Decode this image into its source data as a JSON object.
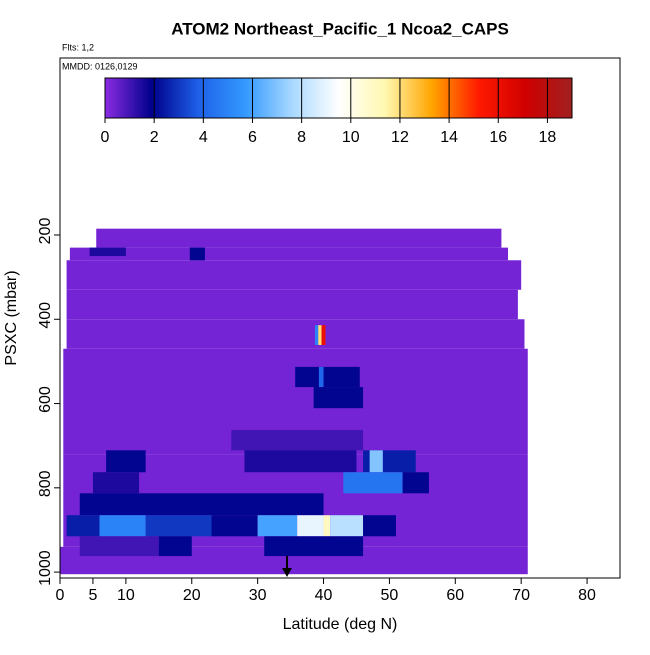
{
  "chart_data": {
    "type": "heatmap",
    "title": "ATOM2 Northeast_Pacific_1 Ncoa2_CAPS",
    "annotations": [
      "Flts: 1,2",
      "MMDD: 0126,0129"
    ],
    "xlabel": "Latitude (deg N)",
    "ylabel": "PSXC (mbar)",
    "xlim": [
      0,
      85
    ],
    "ylim": [
      1014,
      -220
    ],
    "xticks": [
      0,
      5,
      10,
      20,
      30,
      40,
      50,
      60,
      70,
      80
    ],
    "yticks": [
      200,
      400,
      600,
      800,
      1000
    ],
    "colorbar": {
      "lim": [
        0,
        19
      ],
      "ticks": [
        0,
        2,
        4,
        6,
        8,
        10,
        12,
        14,
        16,
        18
      ],
      "colors": [
        "#8a2be2",
        "#00008b",
        "#1e60e8",
        "#3399ff",
        "#a8d8ff",
        "#ffffff",
        "#fff8b0",
        "#ffa500",
        "#ff1a00",
        "#d00000",
        "#a02020"
      ]
    },
    "cells": [
      {
        "lat": [
          5.5,
          67
        ],
        "p": [
          185,
          230
        ],
        "value": 0.3
      },
      {
        "lat": [
          1.5,
          68
        ],
        "p": [
          230,
          260
        ],
        "value": 0.3
      },
      {
        "lat": [
          1,
          70
        ],
        "p": [
          260,
          330
        ],
        "value": 0.3
      },
      {
        "lat": [
          1,
          69.5
        ],
        "p": [
          330,
          400
        ],
        "value": 0.3
      },
      {
        "lat": [
          1,
          70.5
        ],
        "p": [
          400,
          470
        ],
        "value": 0.3
      },
      {
        "lat": [
          0.5,
          71
        ],
        "p": [
          470,
          720
        ],
        "value": 0.3
      },
      {
        "lat": [
          0.5,
          71
        ],
        "p": [
          720,
          940
        ],
        "value": 0.3
      },
      {
        "lat": [
          0,
          71
        ],
        "p": [
          940,
          1005
        ],
        "value": 0.3
      },
      {
        "lat": [
          4.5,
          10
        ],
        "p": [
          230,
          250
        ],
        "value": 1.5
      },
      {
        "lat": [
          19.7,
          22
        ],
        "p": [
          230,
          260
        ],
        "value": 2
      },
      {
        "lat": [
          38.7,
          39.2
        ],
        "p": [
          414,
          461
        ],
        "value": 5
      },
      {
        "lat": [
          39.2,
          39.7
        ],
        "p": [
          414,
          461
        ],
        "value": 12
      },
      {
        "lat": [
          39.7,
          40.3
        ],
        "p": [
          414,
          461
        ],
        "value": 16
      },
      {
        "lat": [
          35.7,
          45.5
        ],
        "p": [
          513,
          561
        ],
        "value": 2
      },
      {
        "lat": [
          39.3,
          40
        ],
        "p": [
          513,
          561
        ],
        "value": 4
      },
      {
        "lat": [
          38.5,
          46
        ],
        "p": [
          561,
          611
        ],
        "value": 2
      },
      {
        "lat": [
          26,
          46
        ],
        "p": [
          663,
          711
        ],
        "value": 1
      },
      {
        "lat": [
          7,
          13
        ],
        "p": [
          711,
          763
        ],
        "value": 2
      },
      {
        "lat": [
          28,
          45
        ],
        "p": [
          711,
          763
        ],
        "value": 1.5
      },
      {
        "lat": [
          46,
          54
        ],
        "p": [
          711,
          763
        ],
        "value": 2.5
      },
      {
        "lat": [
          47,
          49
        ],
        "p": [
          711,
          763
        ],
        "value": 7
      },
      {
        "lat": [
          5,
          12
        ],
        "p": [
          763,
          813
        ],
        "value": 1.5
      },
      {
        "lat": [
          43,
          52
        ],
        "p": [
          763,
          813
        ],
        "value": 4.5
      },
      {
        "lat": [
          52,
          56
        ],
        "p": [
          763,
          813
        ],
        "value": 2
      },
      {
        "lat": [
          3,
          40
        ],
        "p": [
          813,
          865
        ],
        "value": 2
      },
      {
        "lat": [
          1,
          6
        ],
        "p": [
          865,
          915
        ],
        "value": 2.5
      },
      {
        "lat": [
          6,
          13
        ],
        "p": [
          865,
          915
        ],
        "value": 5
      },
      {
        "lat": [
          13,
          23
        ],
        "p": [
          865,
          915
        ],
        "value": 3
      },
      {
        "lat": [
          23,
          30
        ],
        "p": [
          865,
          915
        ],
        "value": 2
      },
      {
        "lat": [
          30,
          36
        ],
        "p": [
          865,
          915
        ],
        "value": 6
      },
      {
        "lat": [
          36,
          40
        ],
        "p": [
          865,
          915
        ],
        "value": 9
      },
      {
        "lat": [
          40,
          41
        ],
        "p": [
          865,
          915
        ],
        "value": 11
      },
      {
        "lat": [
          41,
          46
        ],
        "p": [
          865,
          915
        ],
        "value": 8
      },
      {
        "lat": [
          46,
          51
        ],
        "p": [
          865,
          915
        ],
        "value": 2
      },
      {
        "lat": [
          3,
          15
        ],
        "p": [
          915,
          962
        ],
        "value": 1
      },
      {
        "lat": [
          15,
          20
        ],
        "p": [
          915,
          962
        ],
        "value": 2
      },
      {
        "lat": [
          31,
          46
        ],
        "p": [
          915,
          962
        ],
        "value": 2
      }
    ]
  }
}
